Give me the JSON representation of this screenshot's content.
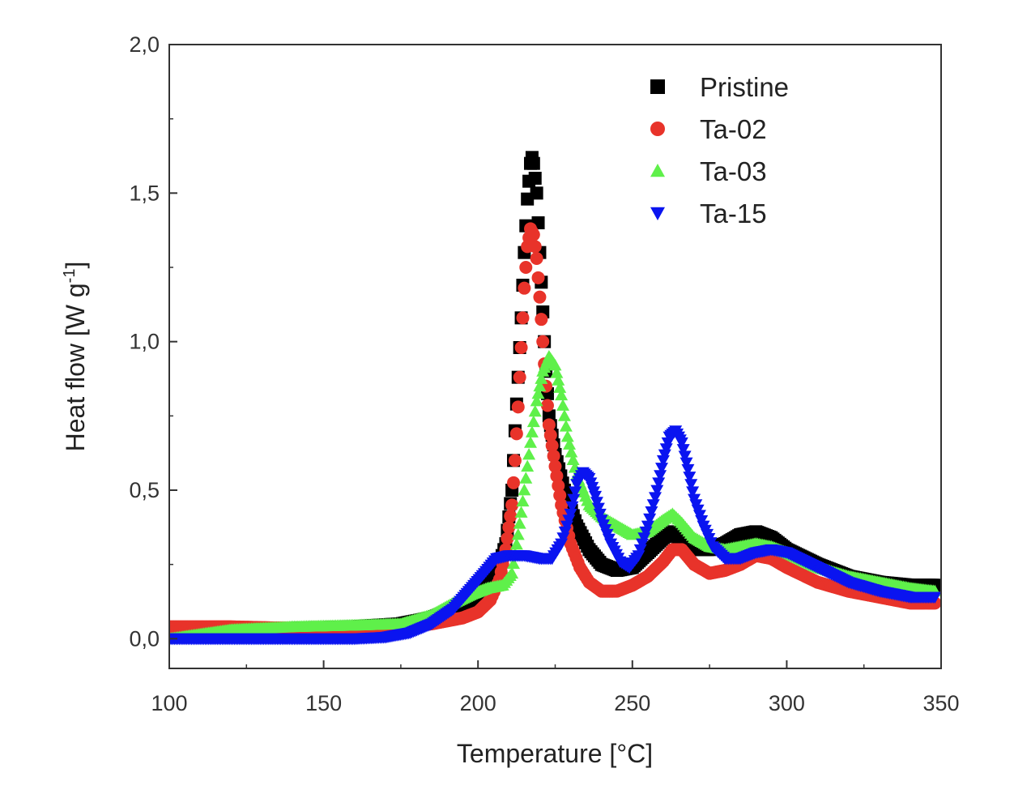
{
  "chart_data": {
    "type": "scatter",
    "title": "",
    "xlabel": "Temperature [°C]",
    "ylabel": "Heat flow [W g",
    "ylabel_sup": "-1",
    "ylabel_end": "]",
    "xlim": [
      100,
      350
    ],
    "ylim": [
      -0.1,
      2.0
    ],
    "xticks": [
      100,
      150,
      200,
      250,
      300,
      350
    ],
    "xtick_labels": [
      "100",
      "150",
      "200",
      "250",
      "300",
      "350"
    ],
    "yticks": [
      0.0,
      0.5,
      1.0,
      1.5,
      2.0
    ],
    "ytick_labels": [
      "0,0",
      "0,5",
      "1,0",
      "1,5",
      "2,0"
    ],
    "grid": false,
    "legend_position": "top-right",
    "series": [
      {
        "name": "Pristine",
        "marker": "square",
        "color": "#000000",
        "points": [
          [
            100,
            0.02
          ],
          [
            120,
            0.03
          ],
          [
            140,
            0.035
          ],
          [
            160,
            0.04
          ],
          [
            175,
            0.05
          ],
          [
            185,
            0.07
          ],
          [
            195,
            0.11
          ],
          [
            202,
            0.16
          ],
          [
            206,
            0.22
          ],
          [
            209,
            0.32
          ],
          [
            211,
            0.5
          ],
          [
            212,
            0.7
          ],
          [
            213,
            0.88
          ],
          [
            214,
            1.08
          ],
          [
            215,
            1.3
          ],
          [
            216,
            1.48
          ],
          [
            217,
            1.6
          ],
          [
            217.5,
            1.62
          ],
          [
            218,
            1.6
          ],
          [
            219,
            1.5
          ],
          [
            220,
            1.3
          ],
          [
            221,
            1.1
          ],
          [
            222,
            0.9
          ],
          [
            223,
            0.75
          ],
          [
            225,
            0.62
          ],
          [
            228,
            0.5
          ],
          [
            232,
            0.38
          ],
          [
            236,
            0.3
          ],
          [
            240,
            0.25
          ],
          [
            245,
            0.23
          ],
          [
            250,
            0.24
          ],
          [
            255,
            0.29
          ],
          [
            260,
            0.34
          ],
          [
            263,
            0.36
          ],
          [
            266,
            0.33
          ],
          [
            270,
            0.3
          ],
          [
            275,
            0.3
          ],
          [
            280,
            0.32
          ],
          [
            285,
            0.35
          ],
          [
            290,
            0.36
          ],
          [
            295,
            0.34
          ],
          [
            300,
            0.3
          ],
          [
            310,
            0.25
          ],
          [
            320,
            0.21
          ],
          [
            330,
            0.19
          ],
          [
            340,
            0.18
          ],
          [
            348,
            0.18
          ]
        ]
      },
      {
        "name": "Ta-02",
        "marker": "circle",
        "color": "#e8332a",
        "points": [
          [
            100,
            0.04
          ],
          [
            120,
            0.04
          ],
          [
            140,
            0.035
          ],
          [
            160,
            0.035
          ],
          [
            175,
            0.04
          ],
          [
            185,
            0.05
          ],
          [
            195,
            0.07
          ],
          [
            200,
            0.09
          ],
          [
            204,
            0.13
          ],
          [
            207,
            0.2
          ],
          [
            209,
            0.3
          ],
          [
            211,
            0.45
          ],
          [
            212,
            0.6
          ],
          [
            213,
            0.78
          ],
          [
            214,
            0.98
          ],
          [
            215,
            1.18
          ],
          [
            216,
            1.32
          ],
          [
            217,
            1.38
          ],
          [
            218,
            1.36
          ],
          [
            219,
            1.28
          ],
          [
            220,
            1.15
          ],
          [
            221,
            1.0
          ],
          [
            222,
            0.85
          ],
          [
            223,
            0.72
          ],
          [
            225,
            0.58
          ],
          [
            227,
            0.45
          ],
          [
            230,
            0.32
          ],
          [
            233,
            0.24
          ],
          [
            236,
            0.19
          ],
          [
            240,
            0.16
          ],
          [
            245,
            0.16
          ],
          [
            250,
            0.18
          ],
          [
            255,
            0.21
          ],
          [
            260,
            0.26
          ],
          [
            263,
            0.3
          ],
          [
            266,
            0.3
          ],
          [
            270,
            0.25
          ],
          [
            275,
            0.22
          ],
          [
            280,
            0.23
          ],
          [
            285,
            0.25
          ],
          [
            290,
            0.28
          ],
          [
            295,
            0.27
          ],
          [
            300,
            0.24
          ],
          [
            310,
            0.19
          ],
          [
            320,
            0.16
          ],
          [
            330,
            0.14
          ],
          [
            340,
            0.12
          ],
          [
            348,
            0.12
          ]
        ]
      },
      {
        "name": "Ta-03",
        "marker": "triangle-up",
        "color": "#5ff04a",
        "points": [
          [
            100,
            0.0
          ],
          [
            120,
            0.03
          ],
          [
            140,
            0.04
          ],
          [
            160,
            0.045
          ],
          [
            175,
            0.05
          ],
          [
            185,
            0.08
          ],
          [
            192,
            0.12
          ],
          [
            198,
            0.15
          ],
          [
            203,
            0.17
          ],
          [
            208,
            0.18
          ],
          [
            211,
            0.22
          ],
          [
            213,
            0.35
          ],
          [
            215,
            0.5
          ],
          [
            217,
            0.66
          ],
          [
            219,
            0.8
          ],
          [
            221,
            0.9
          ],
          [
            223,
            0.95
          ],
          [
            225,
            0.92
          ],
          [
            227,
            0.82
          ],
          [
            229,
            0.68
          ],
          [
            232,
            0.55
          ],
          [
            236,
            0.45
          ],
          [
            240,
            0.41
          ],
          [
            245,
            0.38
          ],
          [
            250,
            0.35
          ],
          [
            255,
            0.36
          ],
          [
            260,
            0.4
          ],
          [
            263,
            0.42
          ],
          [
            266,
            0.39
          ],
          [
            270,
            0.34
          ],
          [
            275,
            0.31
          ],
          [
            280,
            0.3
          ],
          [
            285,
            0.31
          ],
          [
            290,
            0.32
          ],
          [
            295,
            0.31
          ],
          [
            300,
            0.29
          ],
          [
            310,
            0.24
          ],
          [
            320,
            0.21
          ],
          [
            330,
            0.19
          ],
          [
            340,
            0.17
          ],
          [
            348,
            0.16
          ]
        ]
      },
      {
        "name": "Ta-15",
        "marker": "triangle-down",
        "color": "#0a14f0",
        "points": [
          [
            100,
            0.0
          ],
          [
            120,
            0.0
          ],
          [
            140,
            0.0
          ],
          [
            160,
            0.0
          ],
          [
            170,
            0.005
          ],
          [
            178,
            0.02
          ],
          [
            185,
            0.05
          ],
          [
            192,
            0.1
          ],
          [
            197,
            0.16
          ],
          [
            202,
            0.22
          ],
          [
            206,
            0.27
          ],
          [
            210,
            0.28
          ],
          [
            215,
            0.28
          ],
          [
            220,
            0.27
          ],
          [
            224,
            0.27
          ],
          [
            227,
            0.32
          ],
          [
            230,
            0.42
          ],
          [
            232,
            0.52
          ],
          [
            234,
            0.56
          ],
          [
            236,
            0.54
          ],
          [
            238,
            0.48
          ],
          [
            240,
            0.4
          ],
          [
            243,
            0.32
          ],
          [
            246,
            0.26
          ],
          [
            249,
            0.24
          ],
          [
            252,
            0.28
          ],
          [
            255,
            0.38
          ],
          [
            258,
            0.5
          ],
          [
            260,
            0.6
          ],
          [
            262,
            0.68
          ],
          [
            264,
            0.7
          ],
          [
            266,
            0.66
          ],
          [
            268,
            0.57
          ],
          [
            270,
            0.47
          ],
          [
            273,
            0.38
          ],
          [
            276,
            0.31
          ],
          [
            280,
            0.27
          ],
          [
            285,
            0.27
          ],
          [
            290,
            0.29
          ],
          [
            295,
            0.3
          ],
          [
            300,
            0.29
          ],
          [
            310,
            0.24
          ],
          [
            320,
            0.19
          ],
          [
            330,
            0.16
          ],
          [
            340,
            0.14
          ],
          [
            348,
            0.14
          ]
        ]
      }
    ]
  }
}
